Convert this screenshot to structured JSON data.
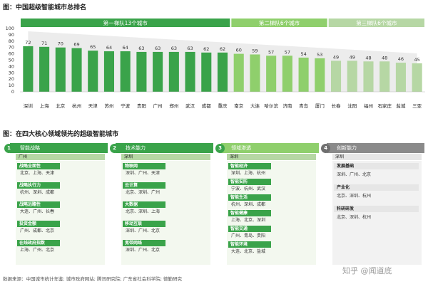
{
  "chart_data": {
    "type": "bar",
    "title": "图：中国超级智能城市总排名",
    "categories": [
      "深圳",
      "上海",
      "北京",
      "杭州",
      "天津",
      "苏州",
      "宁波",
      "贵阳",
      "广州",
      "郑州",
      "武汉",
      "成都",
      "重庆",
      "南京",
      "大连",
      "哈尔滨",
      "济南",
      "青岛",
      "厦门",
      "长春",
      "沈阳",
      "福州",
      "石家庄",
      "盐城",
      "三亚"
    ],
    "values": [
      72,
      71,
      70,
      69,
      65,
      64,
      64,
      63,
      63,
      63,
      63,
      62,
      62,
      60,
      59,
      57,
      57,
      54,
      53,
      49,
      49,
      48,
      48,
      46,
      45
    ],
    "ylim": [
      0,
      100
    ],
    "yticks": [
      0,
      10,
      20,
      30,
      40,
      50,
      60,
      70,
      80,
      90,
      100
    ],
    "tiers": [
      {
        "label": "第一梯队13个城市",
        "count": 13,
        "color": "#3aa34a",
        "bar_color": "#3aa34a"
      },
      {
        "label": "第二梯队6个城市",
        "count": 6,
        "color": "#8fcf6c",
        "bar_color": "#8fcf6c"
      },
      {
        "label": "第三梯队6个城市",
        "count": 6,
        "color": "#b6d7a4",
        "bar_color": "#b6d7a4"
      }
    ],
    "grid": false
  },
  "section2": {
    "title": "图：在四大核心领域领先的超级智能城市",
    "cards": [
      {
        "num": "1",
        "title": "智能战略",
        "city": "广州",
        "sections": [
          {
            "label": "战略全面性",
            "cities": "北京、上海、天津"
          },
          {
            "label": "战略执行力",
            "cities": "杭州、深圳、成都"
          },
          {
            "label": "战略远瞻性",
            "cities": "大连、广州、长春"
          },
          {
            "label": "投资金额",
            "cities": "广州、成都、北京"
          },
          {
            "label": "在线政府指数",
            "cities": "上海、广州、北京"
          }
        ]
      },
      {
        "num": "2",
        "title": "技术能力",
        "city": "深圳",
        "sections": [
          {
            "label": "物联网",
            "cities": "深圳、广州、天津"
          },
          {
            "label": "云计算",
            "cities": "北京、深圳、广州"
          },
          {
            "label": "大数据",
            "cities": "北京、深圳、上海"
          },
          {
            "label": "移动互联",
            "cities": "深圳、广州、北京"
          },
          {
            "label": "宽带网络",
            "cities": "深圳、广州、北京"
          }
        ]
      },
      {
        "num": "3",
        "title": "领域渗透",
        "city": "深圳",
        "sections": [
          {
            "label": "智能经济",
            "cities": "深圳、上海、杭州"
          },
          {
            "label": "智能安防",
            "cities": "宁波、杭州、武汉"
          },
          {
            "label": "智能生活",
            "cities": "杭州、深圳、成都"
          },
          {
            "label": "智能健康",
            "cities": "上海、北京、深圳"
          },
          {
            "label": "智能交通",
            "cities": "广州、青岛、贵阳"
          },
          {
            "label": "智能环境",
            "cities": "大连、北京、盐城"
          }
        ]
      },
      {
        "num": "4",
        "title": "创新能力",
        "city": "深圳",
        "sections": [
          {
            "label": "发展基础",
            "cities": "深圳、广州、北京"
          },
          {
            "label": "产业化",
            "cities": "北京、深圳、杭州"
          },
          {
            "label": "科研研发",
            "cities": "北京、深圳、杭州"
          }
        ]
      }
    ]
  },
  "source_text": "数据来源：中国城市统计年鉴; 城市政府网站; 腾讯研究院; 广东省社会科学院; 德勤研究",
  "watermark": "知乎 @闻道底",
  "colors": {
    "dark_green": "#3aa34a",
    "mid_green": "#8fcf6c",
    "light_green": "#b6d7a4",
    "grey_card": "#8a8a8a",
    "grey_area": "#e6e6e6"
  }
}
